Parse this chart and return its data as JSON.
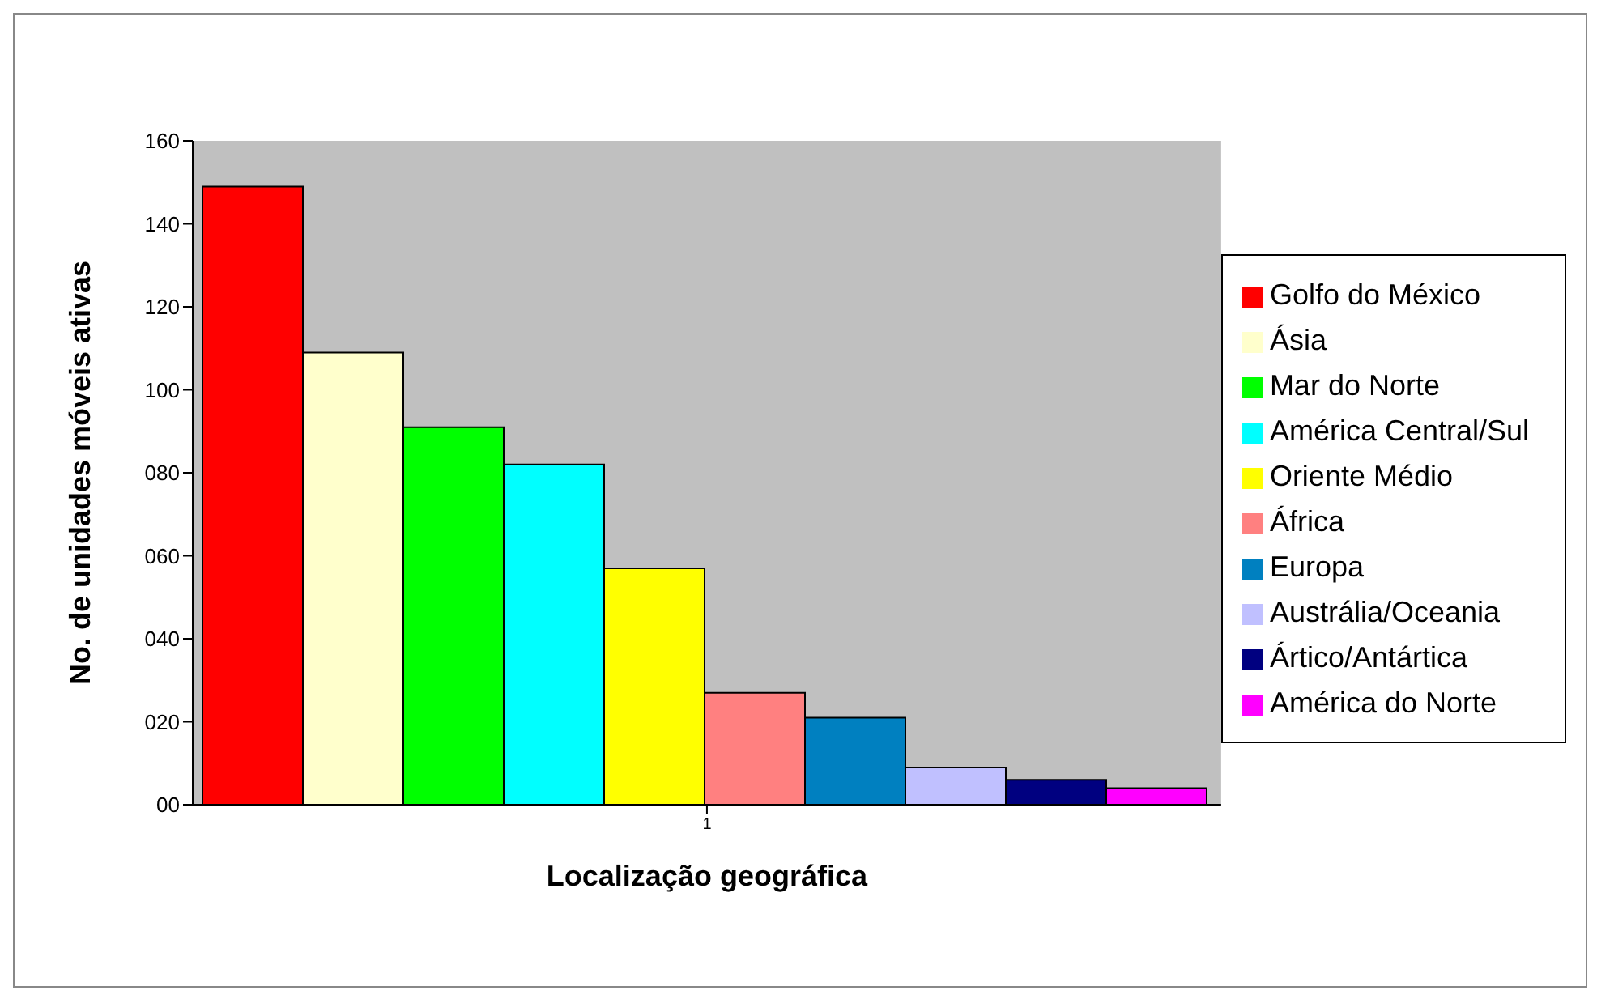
{
  "chart_data": {
    "type": "bar",
    "xlabel": "Localização geográfica",
    "ylabel": "No. de unidades móveis ativas",
    "categories": [
      "1"
    ],
    "series": [
      {
        "name": "Golfo do México",
        "color": "#ff0000",
        "values": [
          149
        ]
      },
      {
        "name": "Ásia",
        "color": "#ffffcc",
        "values": [
          109
        ]
      },
      {
        "name": "Mar do Norte",
        "color": "#00ff00",
        "values": [
          91
        ]
      },
      {
        "name": "América Central/Sul",
        "color": "#00ffff",
        "values": [
          82
        ]
      },
      {
        "name": "Oriente Médio",
        "color": "#ffff00",
        "values": [
          57
        ]
      },
      {
        "name": "África",
        "color": "#ff8080",
        "values": [
          27
        ]
      },
      {
        "name": "Europa",
        "color": "#0080c0",
        "values": [
          21
        ]
      },
      {
        "name": "Austrália/Oceania",
        "color": "#c0c0ff",
        "values": [
          9
        ]
      },
      {
        "name": "Ártico/Antártica",
        "color": "#000080",
        "values": [
          6
        ]
      },
      {
        "name": "América do Norte",
        "color": "#ff00ff",
        "values": [
          4
        ]
      }
    ],
    "ylim": [
      0,
      160
    ],
    "yticks": [
      {
        "value": 0,
        "label": "00"
      },
      {
        "value": 20,
        "label": "020"
      },
      {
        "value": 40,
        "label": "040"
      },
      {
        "value": 60,
        "label": "060"
      },
      {
        "value": 80,
        "label": "080"
      },
      {
        "value": 100,
        "label": "100"
      },
      {
        "value": 120,
        "label": "120"
      },
      {
        "value": 140,
        "label": "140"
      },
      {
        "value": 160,
        "label": "160"
      }
    ],
    "legend": "right"
  }
}
